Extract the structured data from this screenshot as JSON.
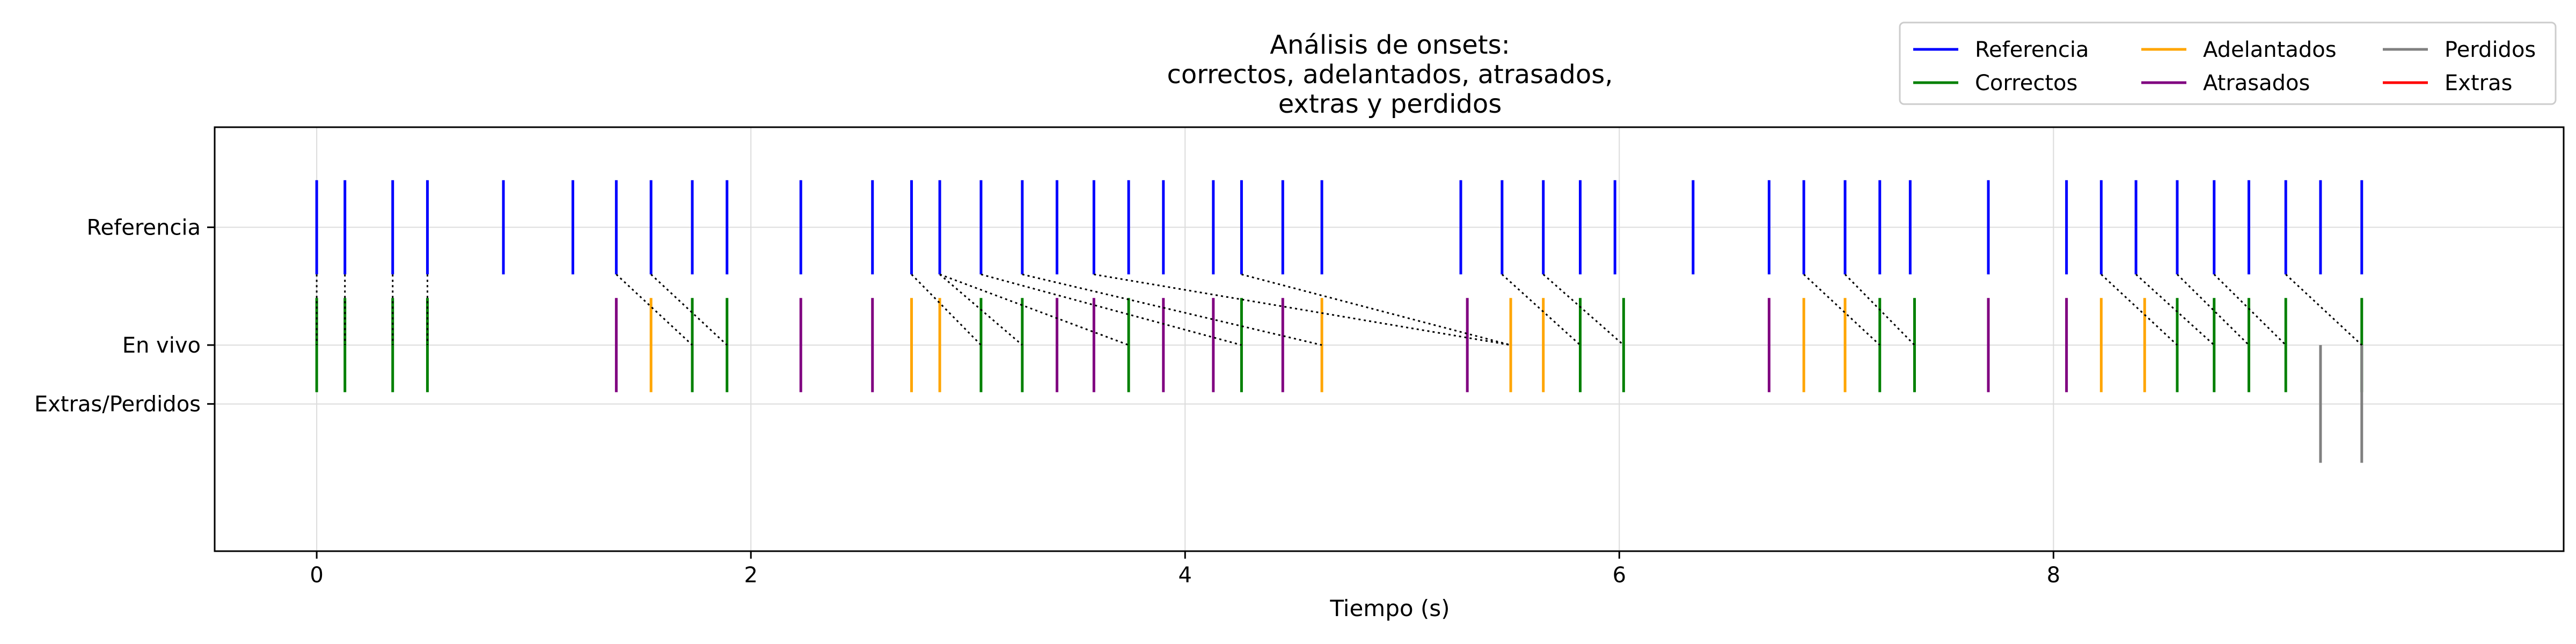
{
  "chart_data": {
    "type": "event",
    "title_lines": [
      "Análisis de onsets:",
      "correctos, adelantados, atrasados,",
      "extras y perdidos"
    ],
    "xlabel": "Tiempo (s)",
    "ylabel": "",
    "xlim": [
      -0.47,
      10.35
    ],
    "ylim": [
      -1.75,
      1.85
    ],
    "xticks": [
      0,
      2,
      4,
      6,
      8
    ],
    "xtick_labels": [
      "0",
      "2",
      "4",
      "6",
      "8"
    ],
    "yticks": [
      {
        "value": 1.0,
        "label": "Referencia"
      },
      {
        "value": 0.0,
        "label": "En vivo"
      },
      {
        "value": -0.5,
        "label": "Extras/Perdidos"
      }
    ],
    "grid": true,
    "legend": {
      "placement": "top-right",
      "columns": 3,
      "entries": [
        {
          "label": "Referencia",
          "color": "#0000ff"
        },
        {
          "label": "Correctos",
          "color": "#008000"
        },
        {
          "label": "Adelantados",
          "color": "#ffa500"
        },
        {
          "label": "Atrasados",
          "color": "#800080"
        },
        {
          "label": "Perdidos",
          "color": "#808080"
        },
        {
          "label": "Extras",
          "color": "#ff0000"
        }
      ]
    },
    "colors": {
      "Referencia": "#0000ff",
      "Correctos": "#008000",
      "Adelantados": "#ffa500",
      "Atrasados": "#800080",
      "Perdidos": "#808080",
      "Extras": "#ff0000",
      "Conexion": "#000000"
    },
    "series": [
      {
        "name": "Referencia",
        "y_range": [
          0.6,
          1.4
        ],
        "x": [
          0.0,
          0.13,
          0.35,
          0.51,
          0.86,
          1.18,
          1.38,
          1.54,
          1.73,
          1.89,
          2.23,
          2.56,
          2.74,
          2.87,
          3.06,
          3.25,
          3.41,
          3.58,
          3.74,
          3.9,
          4.13,
          4.26,
          4.45,
          4.63,
          5.27,
          5.46,
          5.65,
          5.82,
          5.98,
          6.34,
          6.69,
          6.85,
          7.04,
          7.2,
          7.34,
          7.7,
          8.06,
          8.22,
          8.38,
          8.57,
          8.74,
          8.9,
          9.07,
          9.23,
          9.42
        ]
      },
      {
        "name": "Correctos",
        "y_range": [
          -0.4,
          0.4
        ],
        "x": [
          0.0,
          0.13,
          0.35,
          0.51,
          1.73,
          1.89,
          3.06,
          3.25,
          3.74,
          4.26,
          5.82,
          6.02,
          7.2,
          7.36,
          8.57,
          8.74,
          8.9,
          9.07,
          9.42
        ]
      },
      {
        "name": "Adelantados",
        "y_range": [
          -0.4,
          0.4
        ],
        "x": [
          1.54,
          2.74,
          2.87,
          4.63,
          5.5,
          5.65,
          6.85,
          7.04,
          8.22,
          8.42
        ]
      },
      {
        "name": "Atrasados",
        "y_range": [
          -0.4,
          0.4
        ],
        "x": [
          1.38,
          2.23,
          2.56,
          3.41,
          3.58,
          3.9,
          4.13,
          4.45,
          5.3,
          6.69,
          7.7,
          8.06
        ]
      },
      {
        "name": "Perdidos",
        "y_range": [
          -1.0,
          0.0
        ],
        "x": [
          9.23,
          9.42
        ]
      },
      {
        "name": "Extras",
        "y_range": [
          -1.0,
          0.0
        ],
        "x": []
      }
    ],
    "connections": [
      [
        0.0,
        0.0
      ],
      [
        0.13,
        0.13
      ],
      [
        0.35,
        0.35
      ],
      [
        0.51,
        0.51
      ],
      [
        1.38,
        1.73
      ],
      [
        1.54,
        1.89
      ],
      [
        2.74,
        3.06
      ],
      [
        2.87,
        3.25
      ],
      [
        2.87,
        3.74
      ],
      [
        3.06,
        4.26
      ],
      [
        3.25,
        4.63
      ],
      [
        3.58,
        5.5
      ],
      [
        4.26,
        5.5
      ],
      [
        5.46,
        5.82
      ],
      [
        5.65,
        6.02
      ],
      [
        6.85,
        7.2
      ],
      [
        7.04,
        7.36
      ],
      [
        8.22,
        8.57
      ],
      [
        8.38,
        8.74
      ],
      [
        8.57,
        8.9
      ],
      [
        8.74,
        9.07
      ],
      [
        9.07,
        9.42
      ]
    ]
  }
}
